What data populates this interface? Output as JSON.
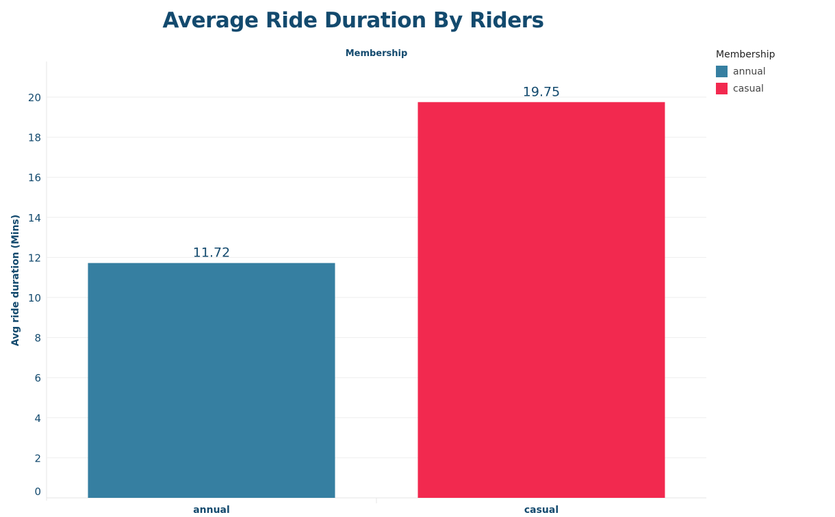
{
  "chart_data": {
    "type": "bar",
    "title": "Average Ride Duration By Riders",
    "header": "Membership",
    "xlabel": "",
    "ylabel": "Avg ride duration (Mins)",
    "categories": [
      "annual",
      "casual"
    ],
    "values": [
      11.72,
      19.75
    ],
    "data_labels": [
      "11.72",
      "19.75"
    ],
    "colors": [
      "#367fa1",
      "#f2294f"
    ],
    "ylim": [
      0,
      21
    ],
    "yticks": [
      0,
      2,
      4,
      6,
      8,
      10,
      12,
      14,
      16,
      18,
      20
    ],
    "grid": true,
    "legend": {
      "title": "Membership",
      "position": "top-right",
      "items": [
        {
          "label": "annual",
          "color": "#367fa1"
        },
        {
          "label": "casual",
          "color": "#f2294f"
        }
      ]
    }
  }
}
